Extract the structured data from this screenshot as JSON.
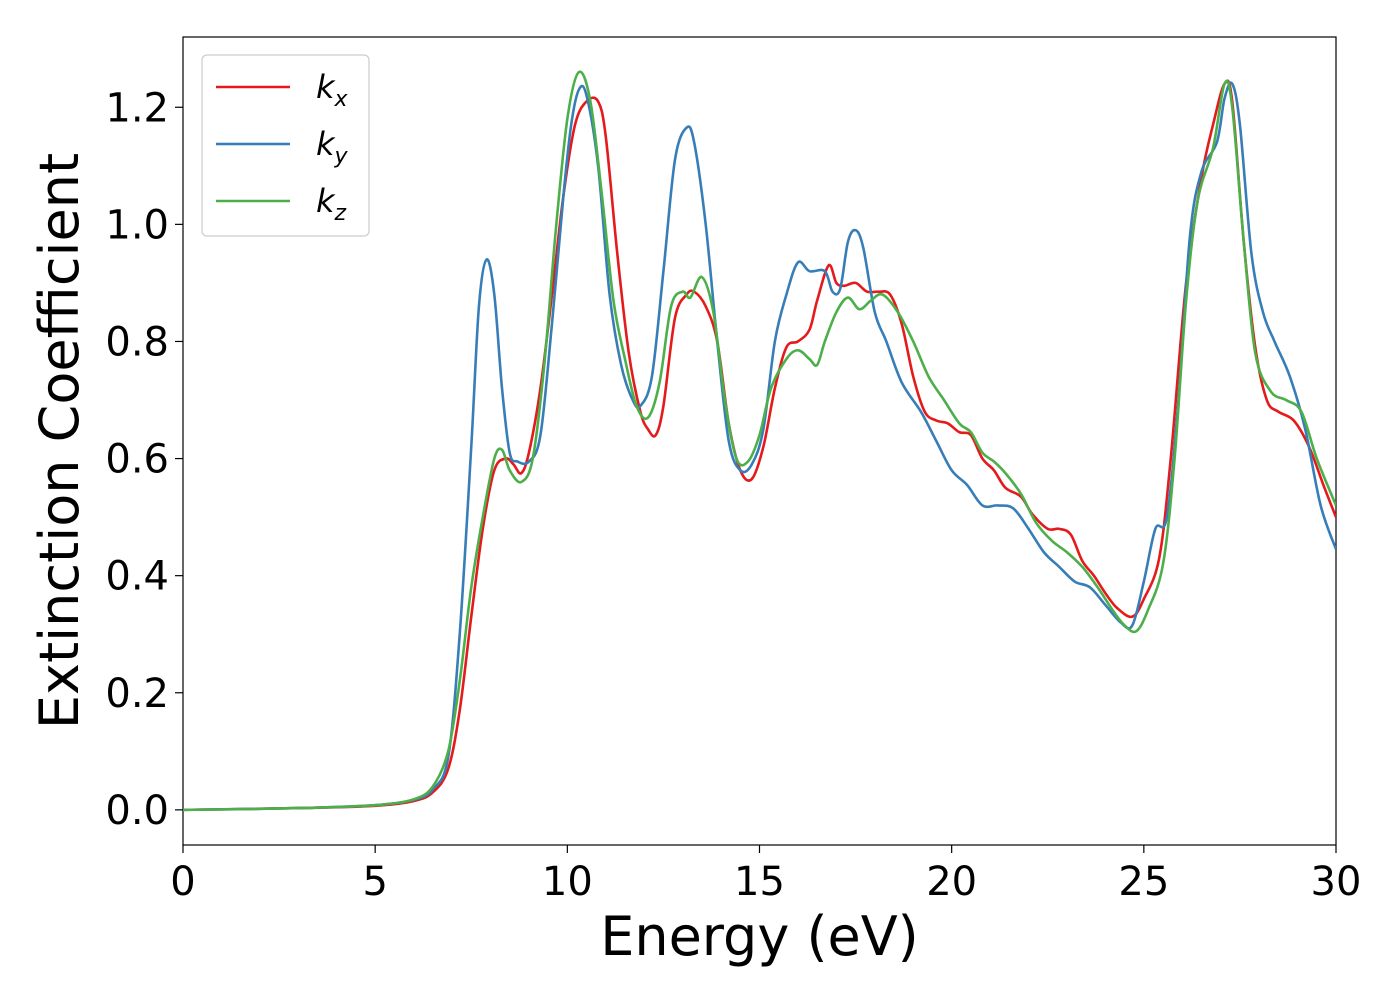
{
  "chart_data": {
    "type": "line",
    "title": "",
    "xlabel": "Energy (eV)",
    "ylabel": "Extinction Coefficient",
    "xlim": [
      0,
      30
    ],
    "ylim": [
      -0.06,
      1.32
    ],
    "xticks": [
      0,
      5,
      10,
      15,
      20,
      25,
      30
    ],
    "xtick_labels": [
      "0",
      "5",
      "10",
      "15",
      "20",
      "25",
      "30"
    ],
    "yticks": [
      0.0,
      0.2,
      0.4,
      0.6,
      0.8,
      1.0,
      1.2
    ],
    "ytick_labels": [
      "0.0",
      "0.2",
      "0.4",
      "0.6",
      "0.8",
      "1.0",
      "1.2"
    ],
    "grid": false,
    "legend_position": "upper-left",
    "series": [
      {
        "name": "k",
        "subscript": "x",
        "color": "#e41a1c",
        "points": [
          [
            0,
            0.0
          ],
          [
            3,
            0.003
          ],
          [
            5,
            0.007
          ],
          [
            6,
            0.015
          ],
          [
            6.5,
            0.03
          ],
          [
            6.9,
            0.07
          ],
          [
            7.2,
            0.17
          ],
          [
            7.5,
            0.33
          ],
          [
            7.8,
            0.48
          ],
          [
            8.1,
            0.58
          ],
          [
            8.4,
            0.6
          ],
          [
            8.6,
            0.59
          ],
          [
            8.8,
            0.575
          ],
          [
            9.0,
            0.61
          ],
          [
            9.3,
            0.72
          ],
          [
            9.6,
            0.88
          ],
          [
            9.9,
            1.05
          ],
          [
            10.2,
            1.17
          ],
          [
            10.5,
            1.21
          ],
          [
            10.8,
            1.21
          ],
          [
            11.0,
            1.15
          ],
          [
            11.3,
            0.95
          ],
          [
            11.6,
            0.78
          ],
          [
            11.9,
            0.68
          ],
          [
            12.1,
            0.65
          ],
          [
            12.3,
            0.64
          ],
          [
            12.5,
            0.69
          ],
          [
            12.8,
            0.84
          ],
          [
            13.1,
            0.88
          ],
          [
            13.3,
            0.885
          ],
          [
            13.6,
            0.86
          ],
          [
            13.9,
            0.8
          ],
          [
            14.2,
            0.66
          ],
          [
            14.5,
            0.58
          ],
          [
            14.8,
            0.565
          ],
          [
            15.1,
            0.62
          ],
          [
            15.4,
            0.72
          ],
          [
            15.7,
            0.79
          ],
          [
            16.0,
            0.8
          ],
          [
            16.3,
            0.82
          ],
          [
            16.5,
            0.87
          ],
          [
            16.8,
            0.93
          ],
          [
            17.0,
            0.9
          ],
          [
            17.2,
            0.895
          ],
          [
            17.5,
            0.9
          ],
          [
            17.8,
            0.885
          ],
          [
            18.1,
            0.885
          ],
          [
            18.4,
            0.88
          ],
          [
            18.7,
            0.83
          ],
          [
            19.0,
            0.74
          ],
          [
            19.3,
            0.68
          ],
          [
            19.6,
            0.665
          ],
          [
            19.9,
            0.66
          ],
          [
            20.2,
            0.645
          ],
          [
            20.5,
            0.64
          ],
          [
            20.8,
            0.6
          ],
          [
            21.1,
            0.58
          ],
          [
            21.4,
            0.55
          ],
          [
            21.8,
            0.535
          ],
          [
            22.1,
            0.505
          ],
          [
            22.5,
            0.48
          ],
          [
            22.8,
            0.48
          ],
          [
            23.1,
            0.47
          ],
          [
            23.4,
            0.425
          ],
          [
            23.7,
            0.4
          ],
          [
            24.0,
            0.37
          ],
          [
            24.3,
            0.345
          ],
          [
            24.7,
            0.33
          ],
          [
            25.0,
            0.36
          ],
          [
            25.4,
            0.43
          ],
          [
            25.7,
            0.6
          ],
          [
            26.1,
            0.9
          ],
          [
            26.5,
            1.08
          ],
          [
            26.8,
            1.17
          ],
          [
            27.1,
            1.24
          ],
          [
            27.3,
            1.21
          ],
          [
            27.6,
            0.97
          ],
          [
            27.9,
            0.79
          ],
          [
            28.2,
            0.7
          ],
          [
            28.5,
            0.68
          ],
          [
            28.9,
            0.665
          ],
          [
            29.3,
            0.62
          ],
          [
            29.7,
            0.55
          ],
          [
            30.0,
            0.5
          ]
        ]
      },
      {
        "name": "k",
        "subscript": "y",
        "color": "#377eb8",
        "points": [
          [
            0,
            0.0
          ],
          [
            3,
            0.003
          ],
          [
            5,
            0.008
          ],
          [
            6,
            0.017
          ],
          [
            6.5,
            0.035
          ],
          [
            6.9,
            0.09
          ],
          [
            7.2,
            0.3
          ],
          [
            7.5,
            0.62
          ],
          [
            7.7,
            0.86
          ],
          [
            7.9,
            0.94
          ],
          [
            8.1,
            0.88
          ],
          [
            8.3,
            0.72
          ],
          [
            8.5,
            0.61
          ],
          [
            8.7,
            0.595
          ],
          [
            9.0,
            0.595
          ],
          [
            9.3,
            0.64
          ],
          [
            9.6,
            0.83
          ],
          [
            9.9,
            1.05
          ],
          [
            10.1,
            1.17
          ],
          [
            10.3,
            1.23
          ],
          [
            10.5,
            1.22
          ],
          [
            10.8,
            1.1
          ],
          [
            11.1,
            0.88
          ],
          [
            11.4,
            0.76
          ],
          [
            11.7,
            0.7
          ],
          [
            11.9,
            0.69
          ],
          [
            12.2,
            0.74
          ],
          [
            12.5,
            0.92
          ],
          [
            12.8,
            1.11
          ],
          [
            13.1,
            1.165
          ],
          [
            13.3,
            1.14
          ],
          [
            13.6,
            1.0
          ],
          [
            13.9,
            0.8
          ],
          [
            14.2,
            0.63
          ],
          [
            14.5,
            0.58
          ],
          [
            14.8,
            0.59
          ],
          [
            15.1,
            0.65
          ],
          [
            15.4,
            0.8
          ],
          [
            15.7,
            0.88
          ],
          [
            16.0,
            0.935
          ],
          [
            16.3,
            0.92
          ],
          [
            16.7,
            0.92
          ],
          [
            16.9,
            0.885
          ],
          [
            17.1,
            0.89
          ],
          [
            17.3,
            0.97
          ],
          [
            17.5,
            0.99
          ],
          [
            17.7,
            0.96
          ],
          [
            18.0,
            0.85
          ],
          [
            18.3,
            0.8
          ],
          [
            18.7,
            0.73
          ],
          [
            19.2,
            0.68
          ],
          [
            19.6,
            0.63
          ],
          [
            20.0,
            0.58
          ],
          [
            20.4,
            0.555
          ],
          [
            20.8,
            0.52
          ],
          [
            21.2,
            0.52
          ],
          [
            21.6,
            0.515
          ],
          [
            22.0,
            0.48
          ],
          [
            22.4,
            0.44
          ],
          [
            22.8,
            0.415
          ],
          [
            23.2,
            0.39
          ],
          [
            23.6,
            0.38
          ],
          [
            24.0,
            0.35
          ],
          [
            24.4,
            0.32
          ],
          [
            24.7,
            0.315
          ],
          [
            25.0,
            0.39
          ],
          [
            25.3,
            0.48
          ],
          [
            25.6,
            0.5
          ],
          [
            25.9,
            0.7
          ],
          [
            26.2,
            0.98
          ],
          [
            26.5,
            1.09
          ],
          [
            26.9,
            1.14
          ],
          [
            27.1,
            1.215
          ],
          [
            27.3,
            1.24
          ],
          [
            27.5,
            1.17
          ],
          [
            27.8,
            0.95
          ],
          [
            28.1,
            0.85
          ],
          [
            28.4,
            0.8
          ],
          [
            28.8,
            0.74
          ],
          [
            29.2,
            0.65
          ],
          [
            29.6,
            0.52
          ],
          [
            30.0,
            0.445
          ]
        ]
      },
      {
        "name": "k",
        "subscript": "z",
        "color": "#4daf4a",
        "points": [
          [
            0,
            0.0
          ],
          [
            3,
            0.003
          ],
          [
            5,
            0.008
          ],
          [
            6,
            0.018
          ],
          [
            6.5,
            0.04
          ],
          [
            6.9,
            0.1
          ],
          [
            7.2,
            0.22
          ],
          [
            7.5,
            0.38
          ],
          [
            7.8,
            0.5
          ],
          [
            8.1,
            0.6
          ],
          [
            8.3,
            0.615
          ],
          [
            8.5,
            0.58
          ],
          [
            8.8,
            0.56
          ],
          [
            9.1,
            0.6
          ],
          [
            9.4,
            0.76
          ],
          [
            9.7,
            0.99
          ],
          [
            10.0,
            1.18
          ],
          [
            10.3,
            1.26
          ],
          [
            10.6,
            1.21
          ],
          [
            10.9,
            1.05
          ],
          [
            11.2,
            0.87
          ],
          [
            11.5,
            0.77
          ],
          [
            11.8,
            0.69
          ],
          [
            12.1,
            0.67
          ],
          [
            12.4,
            0.73
          ],
          [
            12.7,
            0.86
          ],
          [
            13.0,
            0.885
          ],
          [
            13.2,
            0.875
          ],
          [
            13.5,
            0.91
          ],
          [
            13.8,
            0.85
          ],
          [
            14.1,
            0.7
          ],
          [
            14.4,
            0.6
          ],
          [
            14.7,
            0.595
          ],
          [
            15.0,
            0.64
          ],
          [
            15.3,
            0.72
          ],
          [
            15.7,
            0.77
          ],
          [
            16.0,
            0.785
          ],
          [
            16.3,
            0.77
          ],
          [
            16.5,
            0.76
          ],
          [
            16.7,
            0.8
          ],
          [
            17.0,
            0.85
          ],
          [
            17.3,
            0.875
          ],
          [
            17.6,
            0.855
          ],
          [
            17.9,
            0.87
          ],
          [
            18.2,
            0.88
          ],
          [
            18.6,
            0.85
          ],
          [
            19.0,
            0.8
          ],
          [
            19.4,
            0.74
          ],
          [
            19.8,
            0.7
          ],
          [
            20.2,
            0.66
          ],
          [
            20.5,
            0.645
          ],
          [
            20.8,
            0.61
          ],
          [
            21.1,
            0.595
          ],
          [
            21.4,
            0.575
          ],
          [
            21.8,
            0.54
          ],
          [
            22.2,
            0.49
          ],
          [
            22.6,
            0.46
          ],
          [
            23.0,
            0.44
          ],
          [
            23.4,
            0.415
          ],
          [
            23.8,
            0.38
          ],
          [
            24.2,
            0.34
          ],
          [
            24.5,
            0.315
          ],
          [
            24.8,
            0.305
          ],
          [
            25.1,
            0.34
          ],
          [
            25.5,
            0.42
          ],
          [
            25.8,
            0.6
          ],
          [
            26.1,
            0.87
          ],
          [
            26.4,
            1.04
          ],
          [
            26.8,
            1.13
          ],
          [
            27.1,
            1.24
          ],
          [
            27.3,
            1.2
          ],
          [
            27.6,
            0.97
          ],
          [
            27.9,
            0.78
          ],
          [
            28.3,
            0.715
          ],
          [
            28.7,
            0.7
          ],
          [
            29.1,
            0.68
          ],
          [
            29.5,
            0.6
          ],
          [
            30.0,
            0.52
          ]
        ]
      }
    ]
  }
}
